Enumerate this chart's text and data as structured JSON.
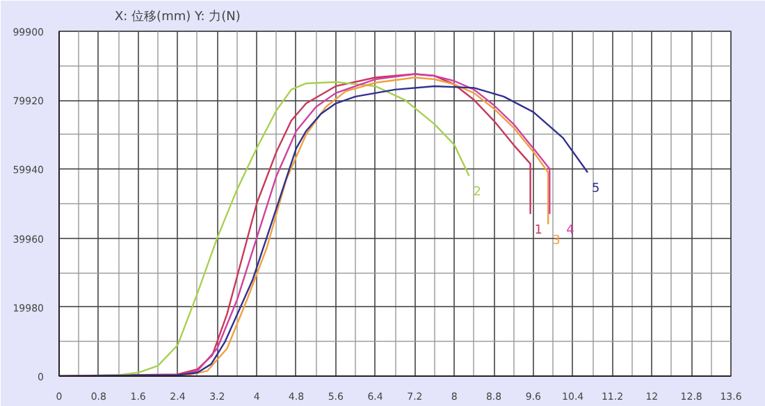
{
  "chart_data": {
    "type": "line",
    "title": "X: 位移(mm)   Y: 力(N)",
    "xlim": [
      0,
      13.6
    ],
    "ylim": [
      0,
      99900
    ],
    "xticks": [
      0,
      0.8,
      1.6,
      2.4,
      3.2,
      4,
      4.8,
      5.6,
      6.4,
      7.2,
      8,
      8.8,
      9.6,
      10.4,
      11.2,
      12,
      12.8,
      13.6
    ],
    "yticks": [
      0,
      19980,
      39960,
      59940,
      79920,
      99900
    ],
    "grid": true,
    "series": [
      {
        "name": "1",
        "color": "#c8385a",
        "x": [
          0,
          2.4,
          2.8,
          3.1,
          3.4,
          3.7,
          4.0,
          4.4,
          4.7,
          5.0,
          5.6,
          6.4,
          7.2,
          7.6,
          8.0,
          8.4,
          8.8,
          9.2,
          9.54,
          9.54
        ],
        "values": [
          0,
          500,
          2000,
          6000,
          18000,
          34000,
          50000,
          65000,
          74000,
          79000,
          84000,
          86500,
          87500,
          87000,
          84500,
          80000,
          74000,
          67000,
          61500,
          47000
        ]
      },
      {
        "name": "2",
        "color": "#a8d050",
        "x": [
          0,
          1.2,
          1.6,
          2.0,
          2.4,
          2.8,
          3.2,
          3.6,
          4.0,
          4.4,
          4.7,
          5.0,
          5.6,
          6.4,
          7.0,
          7.6,
          8.0,
          8.3
        ],
        "values": [
          0,
          300,
          1000,
          3000,
          9000,
          24000,
          40000,
          54000,
          66000,
          77000,
          83000,
          84800,
          85200,
          84000,
          80000,
          73000,
          67000,
          58000
        ]
      },
      {
        "name": "3",
        "color": "#f0a040",
        "x": [
          0,
          2.6,
          3.0,
          3.4,
          3.8,
          4.2,
          4.6,
          5.0,
          5.4,
          5.8,
          6.4,
          7.2,
          7.6,
          8.0,
          8.4,
          8.8,
          9.2,
          9.6,
          9.9,
          9.9
        ],
        "values": [
          0,
          300,
          1500,
          8000,
          22000,
          37000,
          57000,
          70000,
          78000,
          82500,
          85000,
          86500,
          86000,
          84500,
          82000,
          77500,
          72000,
          65000,
          59000,
          44000
        ]
      },
      {
        "name": "4",
        "color": "#d040a0",
        "x": [
          0,
          2.4,
          2.8,
          3.2,
          3.6,
          4.0,
          4.4,
          4.8,
          5.2,
          5.6,
          6.4,
          7.2,
          7.6,
          8.0,
          8.4,
          8.8,
          9.2,
          9.6,
          9.93,
          9.93
        ],
        "values": [
          0,
          300,
          1500,
          8000,
          22000,
          40000,
          58000,
          71000,
          78000,
          82000,
          86000,
          87500,
          87000,
          85500,
          83000,
          78500,
          73000,
          66000,
          60000,
          47000
        ]
      },
      {
        "name": "5",
        "color": "#303090",
        "x": [
          0,
          2.4,
          2.8,
          3.08,
          3.36,
          3.64,
          3.92,
          4.2,
          4.5,
          4.8,
          5.0,
          5.3,
          5.6,
          6.0,
          6.8,
          7.6,
          8.4,
          9.0,
          9.6,
          10.2,
          10.7
        ],
        "values": [
          0,
          300,
          1000,
          3500,
          10000,
          19000,
          28000,
          40000,
          53000,
          66000,
          71000,
          76000,
          79000,
          81000,
          83000,
          84000,
          83500,
          81000,
          76500,
          69000,
          59000
        ]
      }
    ]
  }
}
